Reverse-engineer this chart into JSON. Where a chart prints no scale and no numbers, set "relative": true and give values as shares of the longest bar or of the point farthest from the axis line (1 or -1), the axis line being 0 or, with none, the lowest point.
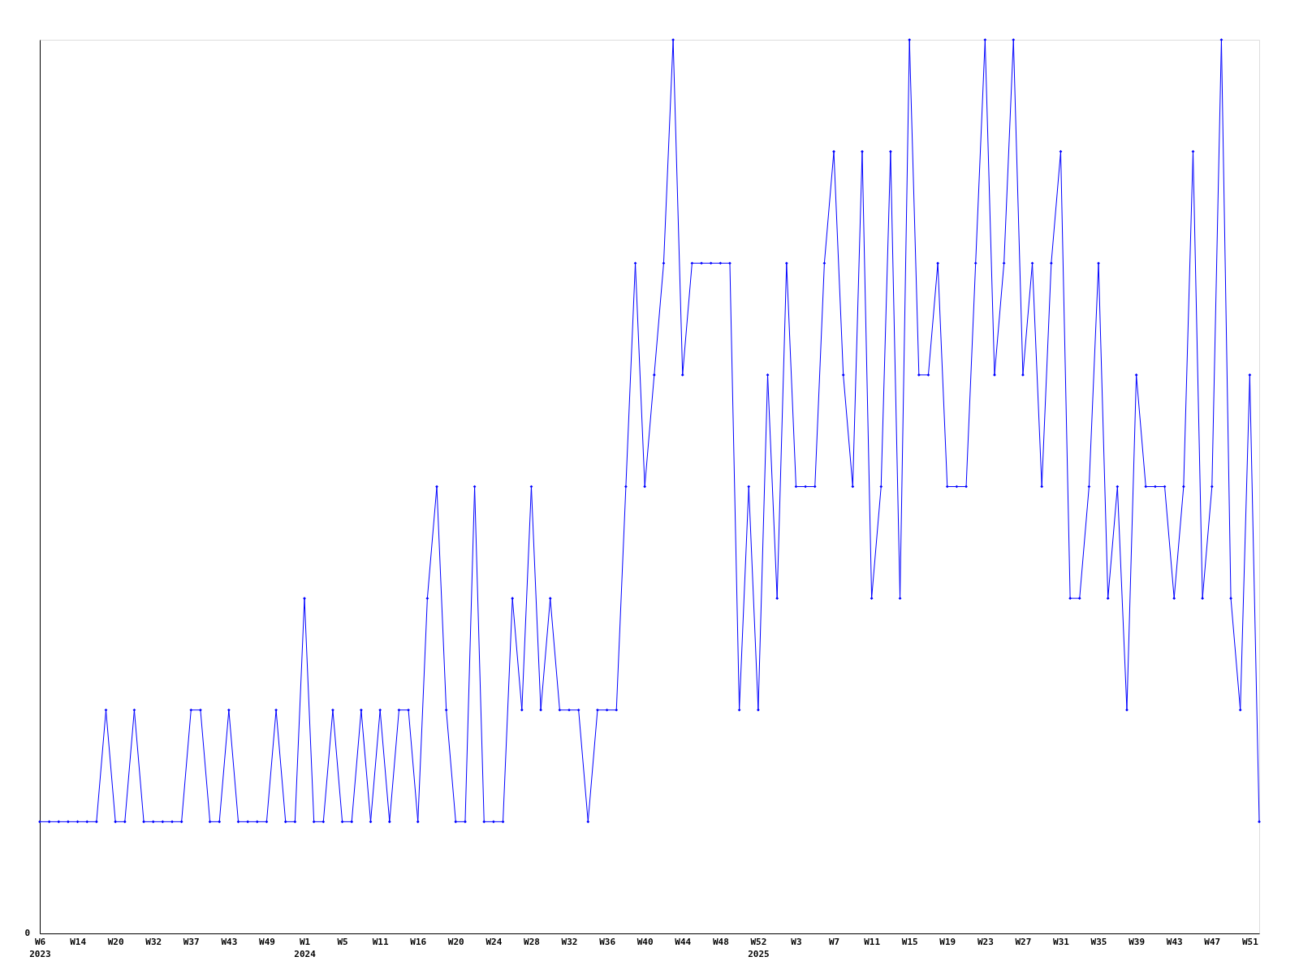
{
  "chart_data": {
    "type": "line",
    "relative": true,
    "marker": "diamond",
    "line_style": "solid",
    "annotations": [
      "0"
    ],
    "categories": [
      "W6\n2023",
      null,
      null,
      null,
      "W14",
      null,
      null,
      null,
      "W20",
      null,
      null,
      null,
      "W32",
      null,
      null,
      null,
      "W37",
      null,
      null,
      null,
      "W43",
      null,
      null,
      null,
      "W49",
      null,
      null,
      null,
      "W1\n2024",
      null,
      null,
      null,
      "W5",
      null,
      null,
      null,
      "W11",
      null,
      null,
      null,
      "W16",
      null,
      null,
      null,
      "W20",
      null,
      null,
      null,
      "W24",
      null,
      null,
      null,
      "W28",
      null,
      null,
      null,
      "W32",
      null,
      null,
      null,
      "W36",
      null,
      null,
      null,
      "W40",
      null,
      null,
      null,
      "W44",
      null,
      null,
      null,
      "W48",
      null,
      null,
      null,
      "W52\n2025",
      null,
      null,
      null,
      "W3",
      null,
      null,
      null,
      "W7",
      null,
      null,
      null,
      "W11",
      null,
      null,
      null,
      "W15",
      null,
      null,
      null,
      "W19",
      null,
      null,
      null,
      "W23",
      null,
      null,
      null,
      "W27",
      null,
      null,
      null,
      "W31",
      null,
      null,
      null,
      "W35",
      null,
      null,
      null,
      "W39",
      null,
      null,
      null,
      "W43",
      null,
      null,
      null,
      "W47",
      null,
      null,
      null,
      "W51",
      null
    ],
    "series": [
      {
        "color": "#0000ff",
        "values": [
          0.125,
          0.125,
          0.125,
          0.125,
          0.125,
          0.125,
          0.125,
          0.25,
          0.125,
          0.125,
          0.25,
          0.125,
          0.125,
          0.125,
          0.125,
          0.125,
          0.25,
          0.25,
          0.125,
          0.125,
          0.25,
          0.125,
          0.125,
          0.125,
          0.125,
          0.25,
          0.125,
          0.125,
          0.375,
          0.125,
          0.125,
          0.25,
          0.125,
          0.125,
          0.25,
          0.125,
          0.25,
          0.125,
          0.25,
          0.25,
          0.125,
          0.375,
          0.5,
          0.25,
          0.125,
          0.125,
          0.5,
          0.125,
          0.125,
          0.125,
          0.375,
          0.25,
          0.5,
          0.25,
          0.375,
          0.25,
          0.25,
          0.25,
          0.125,
          0.25,
          0.25,
          0.25,
          0.5,
          0.75,
          0.5,
          0.625,
          0.75,
          1,
          0.625,
          0.75,
          0.75,
          0.75,
          0.75,
          0.75,
          0.25,
          0.5,
          0.25,
          0.625,
          0.375,
          0.75,
          0.5,
          0.5,
          0.5,
          0.75,
          0.875,
          0.625,
          0.5,
          0.875,
          0.375,
          0.5,
          0.875,
          0.375,
          1,
          0.625,
          0.625,
          0.75,
          0.5,
          0.5,
          0.5,
          0.75,
          1,
          0.625,
          0.75,
          1,
          0.625,
          0.75,
          0.5,
          0.75,
          0.875,
          0.375,
          0.375,
          0.5,
          0.75,
          0.375,
          0.5,
          0.25,
          0.625,
          0.5,
          0.5,
          0.5,
          0.375,
          0.5,
          0.875,
          0.375,
          0.5,
          1,
          0.375,
          0.25,
          0.625,
          0.125
        ]
      }
    ]
  }
}
